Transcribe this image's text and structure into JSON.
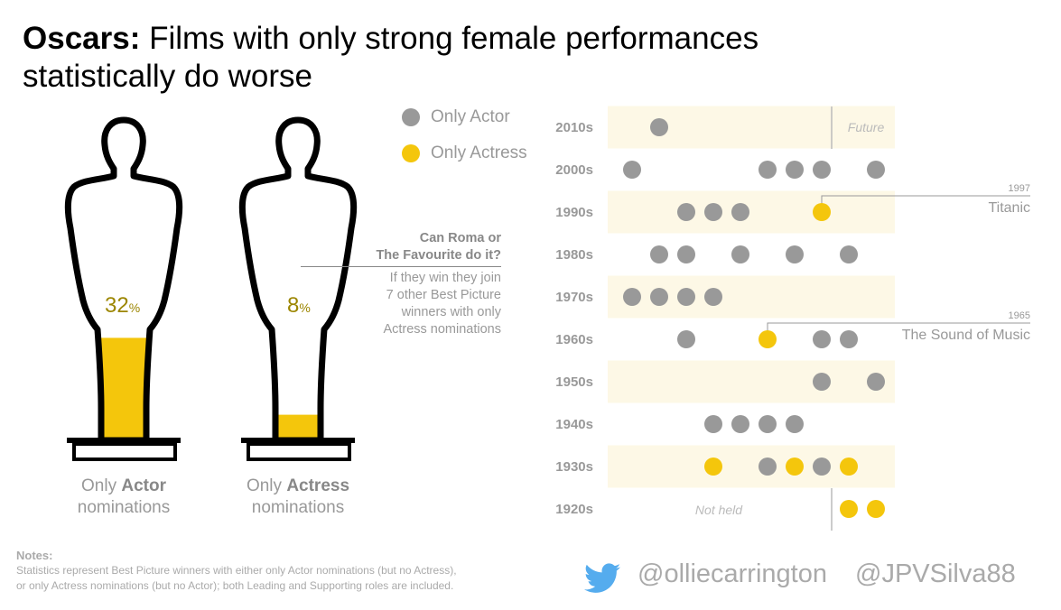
{
  "title": {
    "bold": "Oscars:",
    "rest": " Films with only strong female performances statistically do worse"
  },
  "legend": [
    {
      "label": "Only Actor",
      "color": "#999999"
    },
    {
      "label": "Only Actress",
      "color": "#f4c60c"
    }
  ],
  "statues": [
    {
      "percent": 32,
      "percent_label": "32",
      "percent_sign": "%",
      "caption_light": "Only ",
      "caption_bold": "Actor",
      "caption_line2": "nominations"
    },
    {
      "percent": 8,
      "percent_label": "8",
      "percent_sign": "%",
      "caption_light": "Only ",
      "caption_bold": "Actress",
      "caption_line2": "nominations"
    }
  ],
  "callout": {
    "heading_line1": "Can Roma or",
    "heading_line2": "The Favourite do it?",
    "body": [
      "If they win they join",
      "7 other Best Picture",
      "winners with only",
      "Actress nominations"
    ]
  },
  "colors": {
    "actor": "#999999",
    "actress": "#f4c60c",
    "band": "#fdf8e6",
    "percent_text": "#9c8600"
  },
  "chart_data": {
    "type": "scatter",
    "description_of_encoding": "",
    "rows": [
      {
        "decade": "2010s",
        "shaded": true,
        "actor": [
          2011
        ],
        "actress": []
      },
      {
        "decade": "2000s",
        "shaded": false,
        "actor": [
          2000,
          2005,
          2006,
          2007,
          2009
        ],
        "actress": []
      },
      {
        "decade": "1990s",
        "shaded": true,
        "actor": [
          1992,
          1993,
          1994
        ],
        "actress": [
          1997
        ]
      },
      {
        "decade": "1980s",
        "shaded": false,
        "actor": [
          1981,
          1982,
          1984,
          1986,
          1988
        ],
        "actress": []
      },
      {
        "decade": "1970s",
        "shaded": true,
        "actor": [
          1970,
          1971,
          1972,
          1973
        ],
        "actress": []
      },
      {
        "decade": "1960s",
        "shaded": false,
        "actor": [
          1962,
          1967,
          1968
        ],
        "actress": [
          1965
        ]
      },
      {
        "decade": "1950s",
        "shaded": true,
        "actor": [
          1957,
          1959
        ],
        "actress": []
      },
      {
        "decade": "1940s",
        "shaded": false,
        "actor": [
          1943,
          1944,
          1945,
          1946
        ],
        "actress": []
      },
      {
        "decade": "1930s",
        "shaded": true,
        "actor": [
          1935,
          1937
        ],
        "actress": [
          1933,
          1936,
          1938
        ]
      },
      {
        "decade": "1920s",
        "shaded": false,
        "actor": [],
        "actress": [
          1928,
          1929
        ]
      }
    ],
    "annotations": [
      {
        "year": 1997,
        "year_label": "1997",
        "label": "Titanic"
      },
      {
        "year": 1965,
        "year_label": "1965",
        "label": "The Sound of Music"
      }
    ],
    "region_labels": {
      "future": "Future",
      "not_held": "Not held"
    }
  },
  "notes": {
    "heading": "Notes:",
    "lines": [
      "Statistics represent Best Picture winners with either only Actor nominations (but no Actress),",
      "or only Actress nominations (but no Actor); both Leading and Supporting roles are included."
    ]
  },
  "credits": {
    "handle1": "@olliecarrington",
    "handle2": "@JPVSilva88",
    "twitter_color": "#55acee"
  }
}
